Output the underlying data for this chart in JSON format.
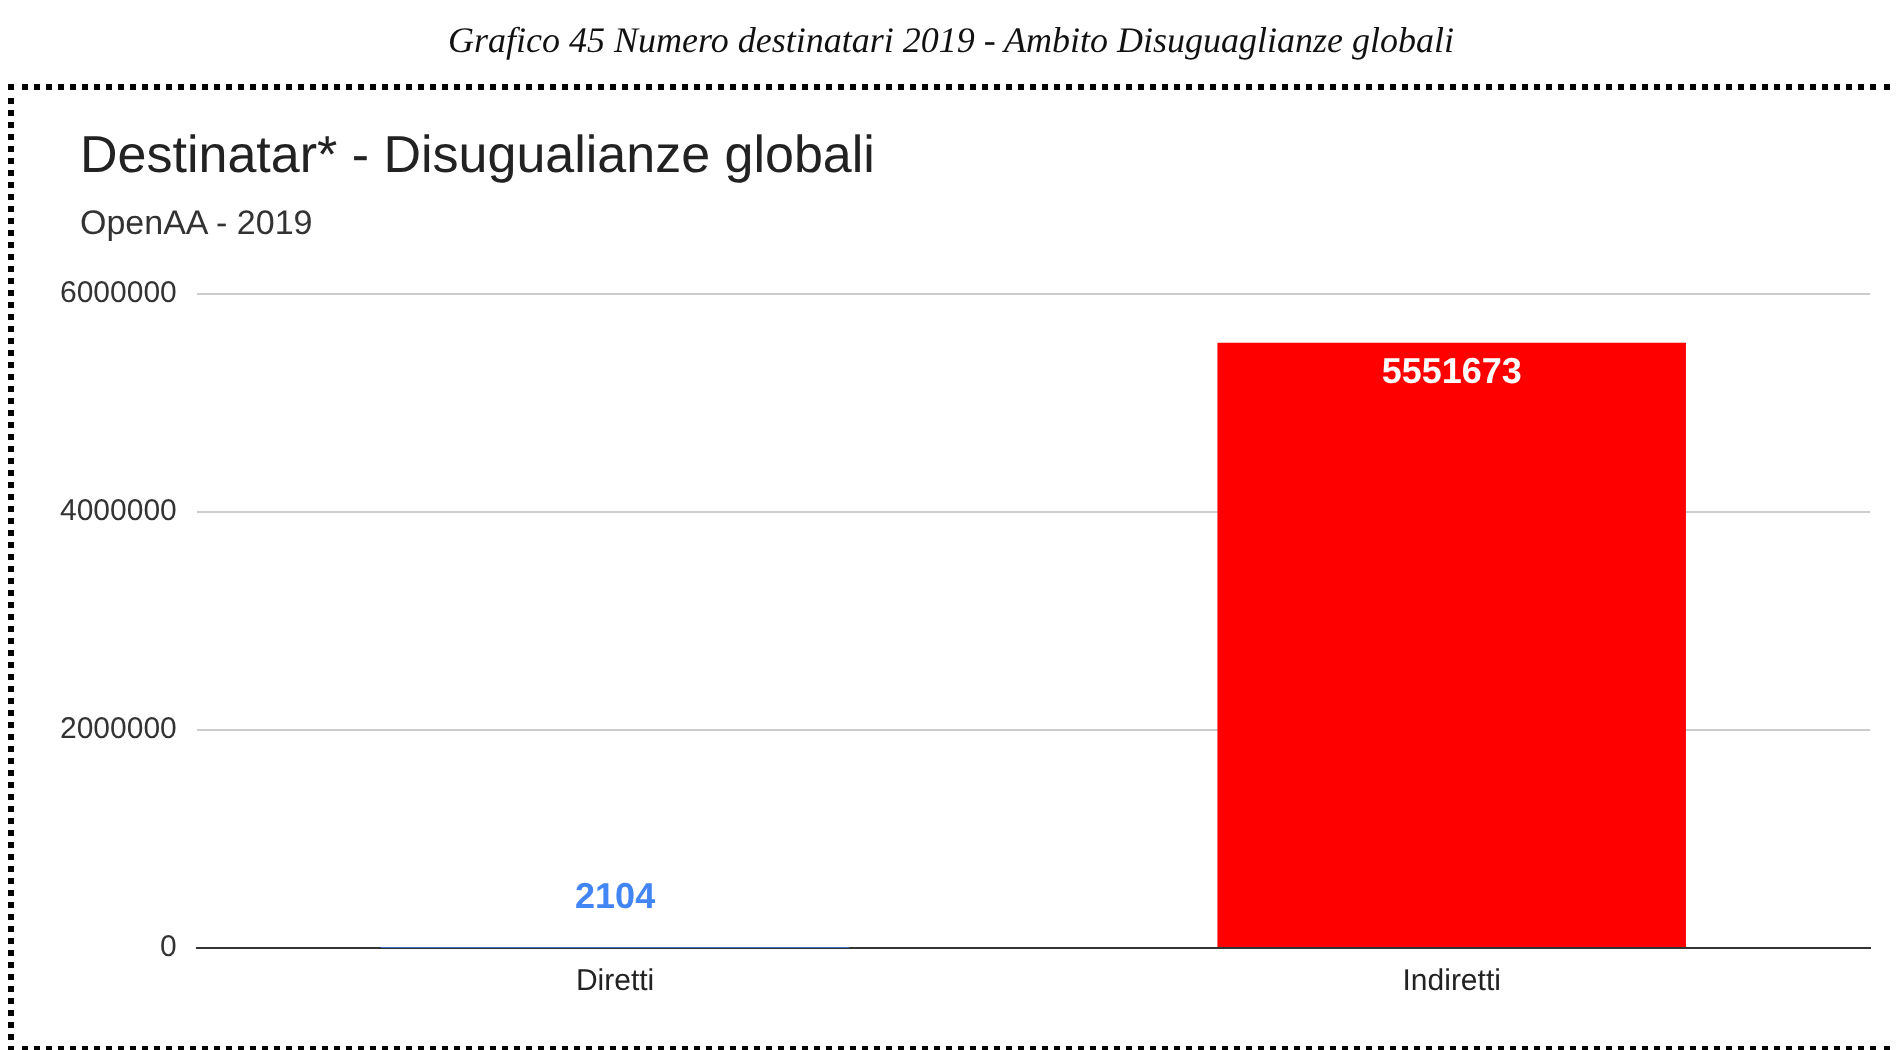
{
  "chart_data": {
    "type": "bar",
    "title": "Destinatar* - Disugualianze globali",
    "subtitle": "OpenAA - 2019",
    "annotations": [
      "Grafico 45  Numero destinatari 2019 - Ambito Disuguaglianze globali"
    ],
    "categories": [
      "Diretti",
      "Indiretti"
    ],
    "values": [
      2104,
      5551673
    ],
    "colors": [
      "#4285f4",
      "#ff0000"
    ],
    "ylim": [
      0,
      6000000
    ],
    "yticks": [
      0,
      2000000,
      4000000,
      6000000
    ],
    "grid": "y",
    "legend": false,
    "data_labels": true
  }
}
